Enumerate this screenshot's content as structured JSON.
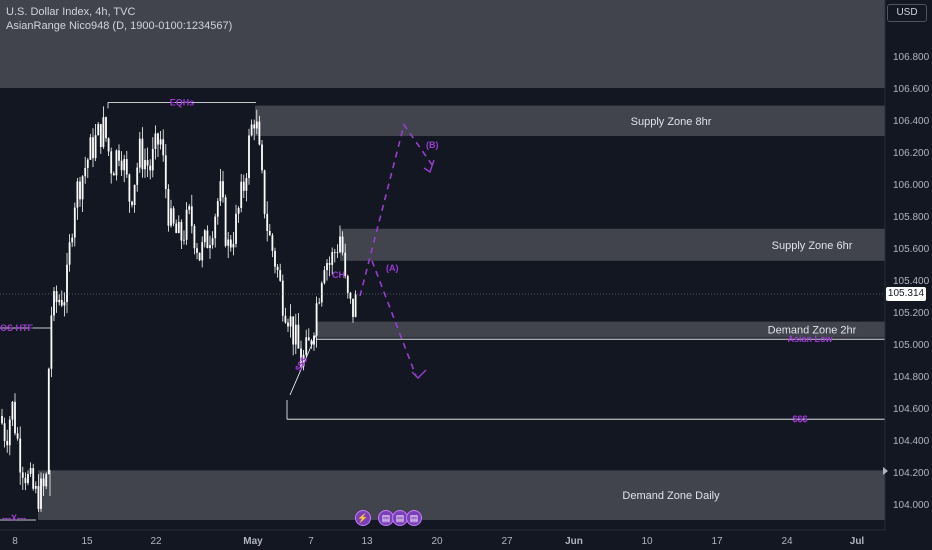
{
  "header": {
    "line1": "U.S. Dollar Index, 4h, TVC",
    "line2": "AsianRange Nico948 (D, 1900-0100:1234567)"
  },
  "currency_label": "USD",
  "current_price": "105.314",
  "colors": {
    "background": "#131722",
    "zone_fill": "#4a4b55",
    "candle": "#ffffff",
    "annotation_purple": "#9c3bd4",
    "text": "#d1d4dc"
  },
  "chart_data": {
    "type": "candlestick",
    "instrument": "U.S. Dollar Index",
    "timeframe": "4h",
    "ylim": [
      103.85,
      107.35
    ],
    "y_ticks": [
      "106.800",
      "106.600",
      "106.400",
      "106.200",
      "106.000",
      "105.800",
      "105.600",
      "105.400",
      "105.200",
      "105.000",
      "104.800",
      "104.600",
      "104.400",
      "104.200",
      "104.000"
    ],
    "x_ticks": [
      "8",
      "15",
      "22",
      "May",
      "7",
      "13",
      "20",
      "27",
      "Jun",
      "10",
      "17",
      "24",
      "Jul"
    ],
    "price_path": [
      {
        "x": 0,
        "y": 104.55
      },
      {
        "x": 6,
        "y": 104.42
      },
      {
        "x": 12,
        "y": 104.62
      },
      {
        "x": 20,
        "y": 104.3
      },
      {
        "x": 28,
        "y": 104.15
      },
      {
        "x": 36,
        "y": 104.05
      },
      {
        "x": 46,
        "y": 104.1
      },
      {
        "x": 50,
        "y": 105.18
      },
      {
        "x": 58,
        "y": 105.28
      },
      {
        "x": 66,
        "y": 105.32
      },
      {
        "x": 74,
        "y": 105.9
      },
      {
        "x": 82,
        "y": 106.05
      },
      {
        "x": 90,
        "y": 106.2
      },
      {
        "x": 98,
        "y": 106.3
      },
      {
        "x": 104,
        "y": 106.35
      },
      {
        "x": 112,
        "y": 106.1
      },
      {
        "x": 120,
        "y": 106.25
      },
      {
        "x": 130,
        "y": 105.9
      },
      {
        "x": 140,
        "y": 106.2
      },
      {
        "x": 150,
        "y": 106.1
      },
      {
        "x": 160,
        "y": 106.3
      },
      {
        "x": 170,
        "y": 105.75
      },
      {
        "x": 180,
        "y": 105.65
      },
      {
        "x": 190,
        "y": 105.8
      },
      {
        "x": 200,
        "y": 105.55
      },
      {
        "x": 210,
        "y": 105.7
      },
      {
        "x": 220,
        "y": 105.95
      },
      {
        "x": 228,
        "y": 105.6
      },
      {
        "x": 236,
        "y": 105.75
      },
      {
        "x": 244,
        "y": 106.0
      },
      {
        "x": 250,
        "y": 106.3
      },
      {
        "x": 255,
        "y": 106.45
      },
      {
        "x": 262,
        "y": 106.0
      },
      {
        "x": 268,
        "y": 105.7
      },
      {
        "x": 276,
        "y": 105.5
      },
      {
        "x": 282,
        "y": 105.3
      },
      {
        "x": 288,
        "y": 105.2
      },
      {
        "x": 294,
        "y": 105.05
      },
      {
        "x": 302,
        "y": 104.88
      },
      {
        "x": 310,
        "y": 105.0
      },
      {
        "x": 318,
        "y": 105.3
      },
      {
        "x": 324,
        "y": 105.55
      },
      {
        "x": 330,
        "y": 105.5
      },
      {
        "x": 336,
        "y": 105.6
      },
      {
        "x": 341,
        "y": 105.7
      },
      {
        "x": 346,
        "y": 105.3
      },
      {
        "x": 352,
        "y": 105.2
      },
      {
        "x": 358,
        "y": 105.3
      }
    ],
    "zones": [
      {
        "name": "",
        "y1": 107.35,
        "y2": 106.6
      },
      {
        "name": "Supply Zone 8hr",
        "y1": 106.49,
        "y2": 106.3,
        "x_start": 255
      },
      {
        "name": "Supply Zone 6hr",
        "y1": 105.72,
        "y2": 105.52,
        "x_start": 340
      },
      {
        "name": "Demand Zone 2hr",
        "y1": 105.14,
        "y2": 105.04,
        "x_start": 316
      },
      {
        "name": "Demand Zone Daily",
        "y1": 104.21,
        "y2": 103.9,
        "x_start": 38
      }
    ],
    "lines": [
      {
        "label": "EQHs",
        "y": 106.51,
        "x1": 108,
        "x2": 256
      },
      {
        "label": "Asian Low",
        "y": 105.03,
        "x1": 316,
        "x2": 885
      },
      {
        "label": "$$$",
        "y": 104.53,
        "x1": 287,
        "x2": 885
      },
      {
        "label": "OS HTF",
        "y": 105.1,
        "x1": 0,
        "x2": 52
      },
      {
        "label": "---X---",
        "y": 103.9,
        "x1": 0,
        "x2": 36
      }
    ],
    "annotations": [
      "(A)",
      "(B)",
      "CH",
      "$$$"
    ],
    "projection": [
      {
        "x": 360,
        "y": 105.3
      },
      {
        "x": 404,
        "y": 106.37
      },
      {
        "x": 432,
        "y": 106.12
      }
    ],
    "projection2": [
      {
        "x": 372,
        "y": 105.52
      },
      {
        "x": 416,
        "y": 104.8
      }
    ]
  }
}
